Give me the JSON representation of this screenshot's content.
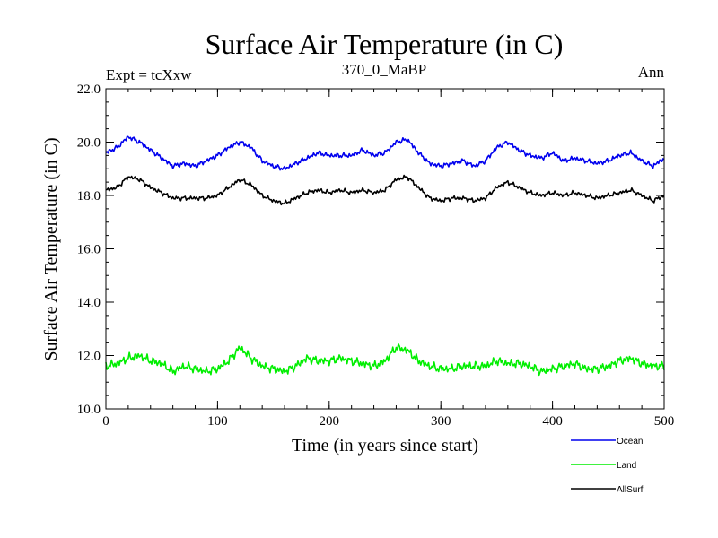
{
  "chart_data": {
    "type": "line",
    "title": "Surface Air Temperature (in C)",
    "subtitle": "370_0_MaBP",
    "left_note": "Expt = tcXxw",
    "right_note": "Ann",
    "xlabel": "Time (in years since start)",
    "ylabel": "Surface Air Temperature (in C)",
    "xlim": [
      0,
      500
    ],
    "ylim": [
      10.0,
      22.0
    ],
    "x_ticks": [
      0,
      100,
      200,
      300,
      400,
      500
    ],
    "x_tick_labels": [
      "0",
      "100",
      "200",
      "300",
      "400",
      "500"
    ],
    "y_ticks": [
      10.0,
      12.0,
      14.0,
      16.0,
      18.0,
      20.0,
      22.0
    ],
    "y_tick_labels": [
      "10.0",
      "12.0",
      "14.0",
      "16.0",
      "18.0",
      "20.0",
      "22.0"
    ],
    "x_minor_step": 20,
    "y_minor_step": 0.5,
    "legend_position": "below-right",
    "series": [
      {
        "name": "Ocean",
        "color": "#0000ee",
        "x": [
          0,
          10,
          20,
          30,
          40,
          50,
          60,
          70,
          80,
          90,
          100,
          110,
          120,
          130,
          140,
          150,
          160,
          170,
          180,
          190,
          200,
          210,
          220,
          230,
          240,
          250,
          260,
          270,
          280,
          290,
          300,
          310,
          320,
          330,
          340,
          350,
          360,
          370,
          380,
          390,
          400,
          410,
          420,
          430,
          440,
          450,
          460,
          470,
          480,
          490,
          500
        ],
        "values": [
          19.6,
          19.8,
          20.2,
          20.0,
          19.7,
          19.4,
          19.1,
          19.2,
          19.1,
          19.3,
          19.5,
          19.8,
          20.0,
          19.8,
          19.3,
          19.1,
          19.0,
          19.2,
          19.4,
          19.6,
          19.5,
          19.5,
          19.5,
          19.7,
          19.5,
          19.6,
          20.0,
          20.1,
          19.6,
          19.2,
          19.1,
          19.2,
          19.3,
          19.1,
          19.3,
          19.8,
          20.0,
          19.7,
          19.5,
          19.4,
          19.6,
          19.3,
          19.4,
          19.3,
          19.2,
          19.3,
          19.5,
          19.6,
          19.3,
          19.1,
          19.4
        ]
      },
      {
        "name": "Land",
        "color": "#00ee00",
        "x": [
          0,
          10,
          20,
          30,
          40,
          50,
          60,
          70,
          80,
          90,
          100,
          110,
          120,
          130,
          140,
          150,
          160,
          170,
          180,
          190,
          200,
          210,
          220,
          230,
          240,
          250,
          260,
          270,
          280,
          290,
          300,
          310,
          320,
          330,
          340,
          350,
          360,
          370,
          380,
          390,
          400,
          410,
          420,
          430,
          440,
          450,
          460,
          470,
          480,
          490,
          500
        ],
        "values": [
          11.6,
          11.7,
          11.9,
          12.0,
          11.8,
          11.7,
          11.4,
          11.6,
          11.5,
          11.4,
          11.5,
          11.8,
          12.3,
          11.9,
          11.6,
          11.5,
          11.4,
          11.6,
          11.9,
          11.8,
          11.8,
          11.9,
          11.8,
          11.7,
          11.6,
          11.8,
          12.3,
          12.2,
          11.8,
          11.6,
          11.5,
          11.5,
          11.6,
          11.6,
          11.6,
          11.8,
          11.7,
          11.7,
          11.6,
          11.4,
          11.5,
          11.6,
          11.7,
          11.5,
          11.5,
          11.6,
          11.8,
          11.9,
          11.7,
          11.6,
          11.6
        ]
      },
      {
        "name": "AllSurf",
        "color": "#000000",
        "x": [
          0,
          10,
          20,
          30,
          40,
          50,
          60,
          70,
          80,
          90,
          100,
          110,
          120,
          130,
          140,
          150,
          160,
          170,
          180,
          190,
          200,
          210,
          220,
          230,
          240,
          250,
          260,
          270,
          280,
          290,
          300,
          310,
          320,
          330,
          340,
          350,
          360,
          370,
          380,
          390,
          400,
          410,
          420,
          430,
          440,
          450,
          460,
          470,
          480,
          490,
          500
        ],
        "values": [
          18.2,
          18.3,
          18.7,
          18.6,
          18.3,
          18.1,
          17.9,
          17.9,
          17.9,
          17.9,
          18.0,
          18.3,
          18.6,
          18.4,
          18.0,
          17.8,
          17.7,
          17.9,
          18.1,
          18.2,
          18.1,
          18.2,
          18.1,
          18.2,
          18.1,
          18.2,
          18.6,
          18.7,
          18.3,
          17.9,
          17.8,
          17.9,
          17.9,
          17.8,
          17.9,
          18.3,
          18.5,
          18.3,
          18.1,
          18.0,
          18.1,
          18.0,
          18.1,
          18.0,
          17.9,
          18.0,
          18.1,
          18.2,
          18.0,
          17.8,
          18.0
        ]
      }
    ]
  }
}
